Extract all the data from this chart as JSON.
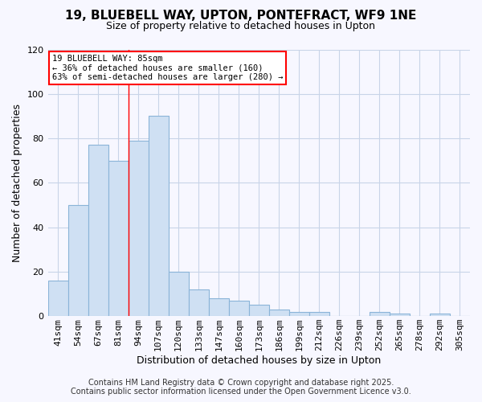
{
  "title_line1": "19, BLUEBELL WAY, UPTON, PONTEFRACT, WF9 1NE",
  "title_line2": "Size of property relative to detached houses in Upton",
  "categories": [
    "41sqm",
    "54sqm",
    "67sqm",
    "81sqm",
    "94sqm",
    "107sqm",
    "120sqm",
    "133sqm",
    "147sqm",
    "160sqm",
    "173sqm",
    "186sqm",
    "199sqm",
    "212sqm",
    "226sqm",
    "239sqm",
    "252sqm",
    "265sqm",
    "278sqm",
    "292sqm",
    "305sqm"
  ],
  "values": [
    16,
    50,
    77,
    70,
    79,
    90,
    20,
    12,
    8,
    7,
    5,
    3,
    2,
    2,
    0,
    0,
    2,
    1,
    0,
    1,
    0
  ],
  "bar_color": "#cfe0f3",
  "bar_edge_color": "#8ab4d8",
  "ylabel": "Number of detached properties",
  "xlabel": "Distribution of detached houses by size in Upton",
  "ylim": [
    0,
    120
  ],
  "yticks": [
    0,
    20,
    40,
    60,
    80,
    100,
    120
  ],
  "property_line_x": 3.5,
  "annotation_title": "19 BLUEBELL WAY: 85sqm",
  "annotation_line2": "← 36% of detached houses are smaller (160)",
  "annotation_line3": "63% of semi-detached houses are larger (280) →",
  "footer_line1": "Contains HM Land Registry data © Crown copyright and database right 2025.",
  "footer_line2": "Contains public sector information licensed under the Open Government Licence v3.0.",
  "background_color": "#f7f7ff",
  "grid_color": "#c8d4e8",
  "title_fontsize": 11,
  "subtitle_fontsize": 9,
  "ylabel_fontsize": 9,
  "xlabel_fontsize": 9,
  "tick_fontsize": 8,
  "footer_fontsize": 7
}
